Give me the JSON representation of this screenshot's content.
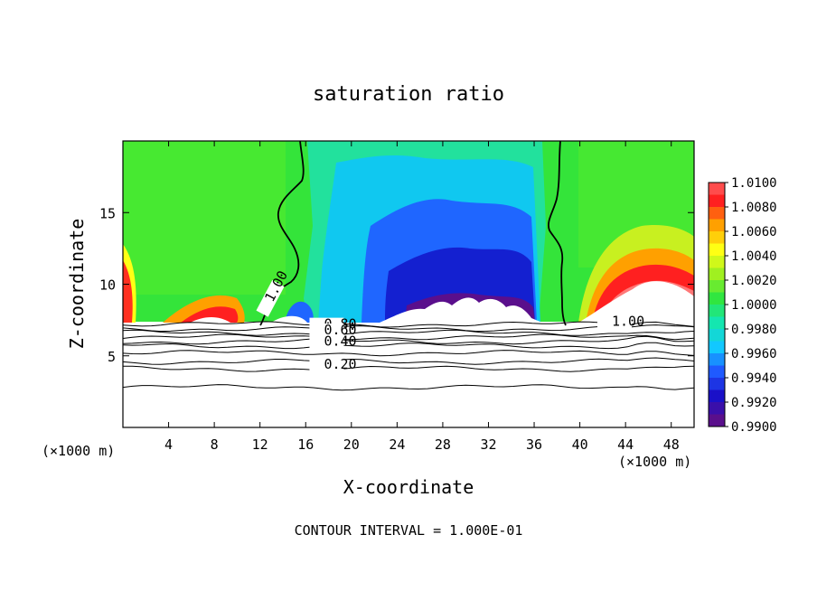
{
  "chart_data": {
    "type": "heatmap",
    "title": "saturation ratio",
    "xlabel": "X-coordinate",
    "ylabel": "Z-coordinate",
    "x_unit_left": "(×1000 m)",
    "x_unit_right": "(×1000 m)",
    "xlim": [
      0,
      50
    ],
    "ylim": [
      0,
      20
    ],
    "x_ticks": [
      4,
      8,
      12,
      16,
      20,
      24,
      28,
      32,
      36,
      40,
      44,
      48
    ],
    "y_ticks": [
      5,
      10,
      15
    ],
    "footer": "CONTOUR INTERVAL = 1.000E-01",
    "colorbar": {
      "levels": [
        0.99,
        0.992,
        0.994,
        0.996,
        0.998,
        1.0,
        1.002,
        1.004,
        1.006,
        1.008,
        1.01
      ],
      "labels": [
        "0.9900",
        "0.9920",
        "0.9940",
        "0.9960",
        "0.9980",
        "1.0000",
        "1.0020",
        "1.0040",
        "1.0060",
        "1.0080",
        "1.0100"
      ],
      "colors": [
        "#5a0f8c",
        "#1a10c8",
        "#1f5aff",
        "#12c8ff",
        "#14e6b0",
        "#30e640",
        "#a0f020",
        "#ffff14",
        "#ffa000",
        "#ff2020",
        "#ff7878"
      ]
    },
    "contour_labels": [
      {
        "text": "1.00",
        "x": 13.1,
        "z": 8.7
      },
      {
        "text": "1.00",
        "x": 42.8,
        "z": 7.1
      },
      {
        "text": "0.80",
        "x": 17.6,
        "z": 6.9
      },
      {
        "text": "0.60",
        "x": 17.6,
        "z": 6.5
      },
      {
        "text": "0.40",
        "x": 17.6,
        "z": 5.7
      },
      {
        "text": "0.20",
        "x": 17.6,
        "z": 4.1
      }
    ]
  }
}
